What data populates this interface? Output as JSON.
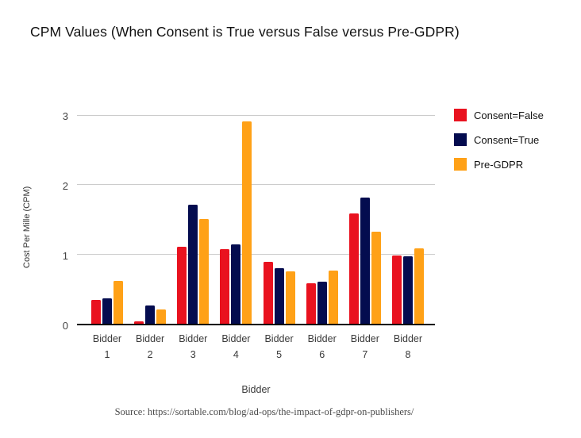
{
  "chart_data": {
    "type": "bar",
    "title": "CPM Values (When Consent is True versus False versus Pre-GDPR)",
    "xlabel": "Bidder",
    "ylabel": "Cost Per Mille (CPM)",
    "ylim": [
      0,
      3
    ],
    "yticks": [
      0,
      1,
      2,
      3
    ],
    "grid": "horizontal",
    "legend_position": "right",
    "categories": [
      "Bidder 1",
      "Bidder 2",
      "Bidder 3",
      "Bidder 4",
      "Bidder 5",
      "Bidder 6",
      "Bidder 7",
      "Bidder 8"
    ],
    "series": [
      {
        "name": "Consent=False",
        "color": "#e9121f",
        "values": [
          0.34,
          0.03,
          1.11,
          1.08,
          0.89,
          0.58,
          1.59,
          0.99
        ]
      },
      {
        "name": "Consent=True",
        "color": "#040c4f",
        "values": [
          0.37,
          0.26,
          1.72,
          1.14,
          0.8,
          0.61,
          1.82,
          0.97
        ]
      },
      {
        "name": "Pre-GDPR",
        "color": "#ffa117",
        "values": [
          0.62,
          0.21,
          1.51,
          2.92,
          0.76,
          0.77,
          1.33,
          1.09
        ]
      }
    ],
    "source": "Source: https://sortable.com/blog/ad-ops/the-impact-of-gdpr-on-publishers/"
  },
  "colors": {
    "gridline": "#cccccc",
    "axis_line": "#000000",
    "tick_label": "#424242",
    "title_text": "#111111",
    "source_text": "#4a4a4a"
  }
}
